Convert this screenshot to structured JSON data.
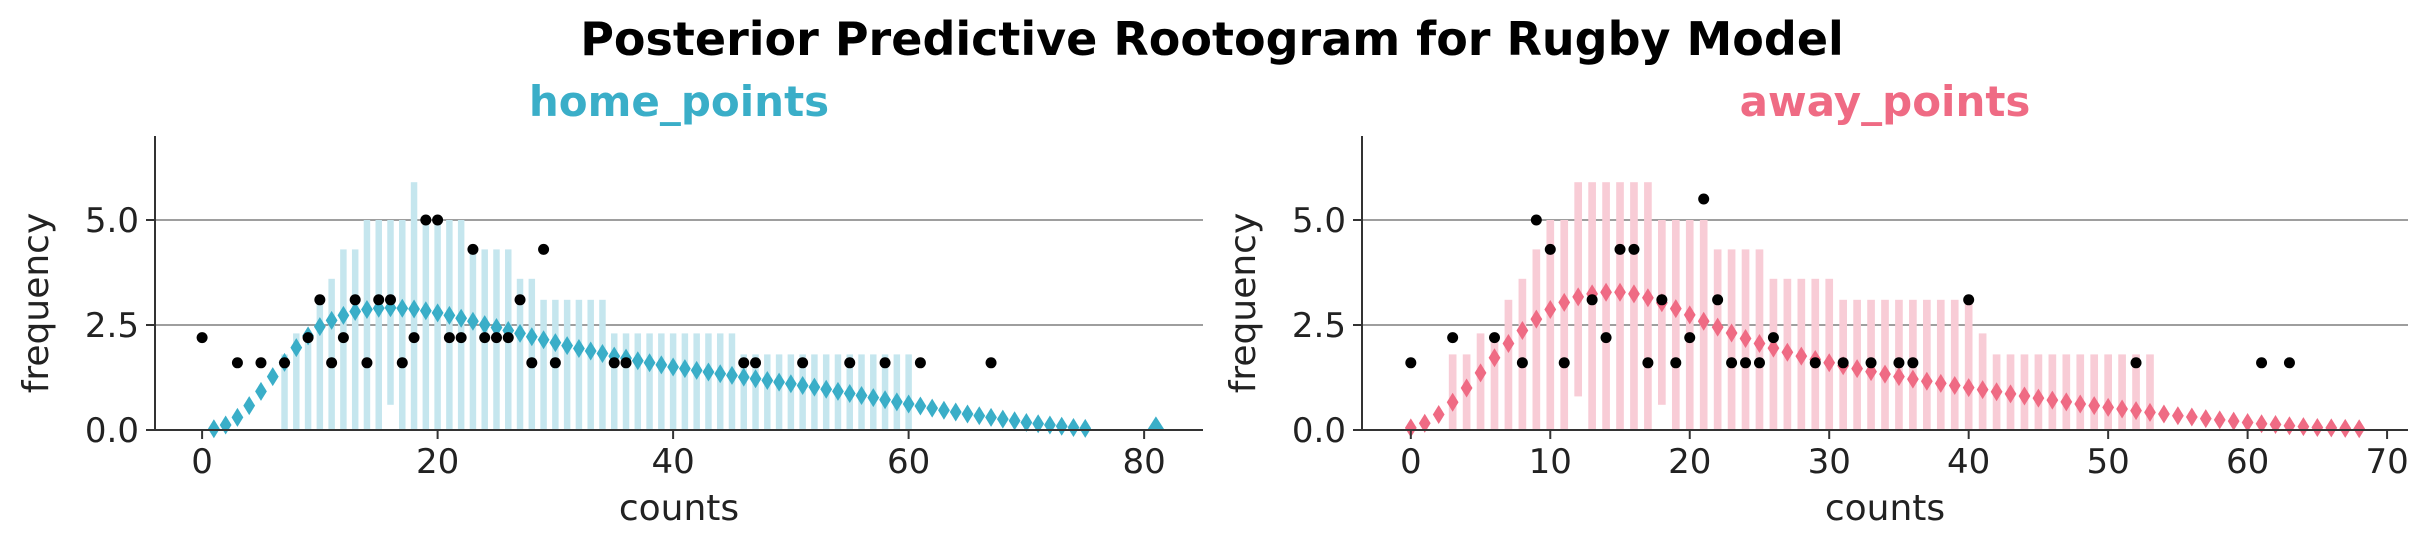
{
  "title": "Posterior Predictive Rootogram for Rugby Model",
  "colors": {
    "home": "#3aaec8",
    "home_light": "#c5e6ee",
    "away": "#ef6b84",
    "away_light": "#f8ccd6",
    "observed": "#000000",
    "gridline": "#7f7f7f"
  },
  "chart_data": [
    {
      "type": "rootogram",
      "title": "home_points",
      "xlabel": "counts",
      "ylabel": "frequency",
      "scale": "sqrt",
      "xlim": [
        -4,
        85
      ],
      "ylim": [
        0,
        7
      ],
      "xticks": [
        0,
        20,
        40,
        60,
        80
      ],
      "yticks": [
        0.0,
        2.5,
        5.0
      ],
      "gridlines_y": [
        2.5,
        5.0
      ],
      "bands": [
        {
          "x": 7,
          "lo": 0,
          "hi": 1.8
        },
        {
          "x": 8,
          "lo": 0,
          "hi": 2.3
        },
        {
          "x": 9,
          "lo": 0,
          "hi": 2.3
        },
        {
          "x": 10,
          "lo": 0,
          "hi": 3.1
        },
        {
          "x": 11,
          "lo": 0,
          "hi": 3.6
        },
        {
          "x": 12,
          "lo": 0,
          "hi": 4.3
        },
        {
          "x": 13,
          "lo": 0,
          "hi": 4.3
        },
        {
          "x": 14,
          "lo": 0,
          "hi": 5.0
        },
        {
          "x": 15,
          "lo": 0,
          "hi": 5.0
        },
        {
          "x": 16,
          "lo": 0.6,
          "hi": 5.0
        },
        {
          "x": 17,
          "lo": 0,
          "hi": 5.0
        },
        {
          "x": 18,
          "lo": 0,
          "hi": 5.9
        },
        {
          "x": 19,
          "lo": 0,
          "hi": 5.0
        },
        {
          "x": 20,
          "lo": 0,
          "hi": 5.0
        },
        {
          "x": 21,
          "lo": 0,
          "hi": 5.0
        },
        {
          "x": 22,
          "lo": 0,
          "hi": 5.0
        },
        {
          "x": 23,
          "lo": 0,
          "hi": 4.3
        },
        {
          "x": 24,
          "lo": 0,
          "hi": 4.3
        },
        {
          "x": 25,
          "lo": 0,
          "hi": 4.3
        },
        {
          "x": 26,
          "lo": 0,
          "hi": 4.3
        },
        {
          "x": 27,
          "lo": 0,
          "hi": 3.6
        },
        {
          "x": 28,
          "lo": 0,
          "hi": 3.6
        },
        {
          "x": 29,
          "lo": 0,
          "hi": 3.1
        },
        {
          "x": 30,
          "lo": 0,
          "hi": 3.1
        },
        {
          "x": 31,
          "lo": 0,
          "hi": 3.1
        },
        {
          "x": 32,
          "lo": 0,
          "hi": 3.1
        },
        {
          "x": 33,
          "lo": 0,
          "hi": 3.1
        },
        {
          "x": 34,
          "lo": 0,
          "hi": 3.1
        },
        {
          "x": 35,
          "lo": 0,
          "hi": 2.3
        },
        {
          "x": 36,
          "lo": 0,
          "hi": 2.3
        },
        {
          "x": 37,
          "lo": 0,
          "hi": 2.3
        },
        {
          "x": 38,
          "lo": 0,
          "hi": 2.3
        },
        {
          "x": 39,
          "lo": 0,
          "hi": 2.3
        },
        {
          "x": 40,
          "lo": 0,
          "hi": 2.3
        },
        {
          "x": 41,
          "lo": 0,
          "hi": 2.3
        },
        {
          "x": 42,
          "lo": 0,
          "hi": 2.3
        },
        {
          "x": 43,
          "lo": 0,
          "hi": 2.3
        },
        {
          "x": 44,
          "lo": 0,
          "hi": 2.3
        },
        {
          "x": 45,
          "lo": 0,
          "hi": 2.3
        },
        {
          "x": 46,
          "lo": 0,
          "hi": 1.8
        },
        {
          "x": 47,
          "lo": 0,
          "hi": 1.8
        },
        {
          "x": 48,
          "lo": 0,
          "hi": 1.8
        },
        {
          "x": 49,
          "lo": 0,
          "hi": 1.8
        },
        {
          "x": 50,
          "lo": 0,
          "hi": 1.8
        },
        {
          "x": 51,
          "lo": 0,
          "hi": 1.8
        },
        {
          "x": 52,
          "lo": 0,
          "hi": 1.8
        },
        {
          "x": 53,
          "lo": 0,
          "hi": 1.8
        },
        {
          "x": 54,
          "lo": 0,
          "hi": 1.8
        },
        {
          "x": 55,
          "lo": 0,
          "hi": 1.8
        },
        {
          "x": 56,
          "lo": 0,
          "hi": 1.8
        },
        {
          "x": 57,
          "lo": 0,
          "hi": 1.8
        },
        {
          "x": 58,
          "lo": 0,
          "hi": 1.8
        },
        {
          "x": 59,
          "lo": 0,
          "hi": 1.8
        },
        {
          "x": 60,
          "lo": 0,
          "hi": 1.8
        }
      ],
      "expected": {
        "x": [
          1,
          2,
          3,
          4,
          5,
          6,
          7,
          8,
          9,
          10,
          11,
          12,
          13,
          14,
          15,
          16,
          17,
          18,
          19,
          20,
          21,
          22,
          23,
          24,
          25,
          26,
          27,
          28,
          29,
          30,
          31,
          32,
          33,
          34,
          35,
          36,
          37,
          38,
          39,
          40,
          41,
          42,
          43,
          44,
          45,
          46,
          47,
          48,
          49,
          50,
          51,
          52,
          53,
          54,
          55,
          56,
          57,
          58,
          59,
          60,
          61,
          62,
          63,
          64,
          65,
          66,
          67,
          68,
          69,
          70,
          71,
          72,
          73,
          74,
          75
        ],
        "y": [
          0.03,
          0.12,
          0.3,
          0.58,
          0.92,
          1.27,
          1.61,
          1.96,
          2.24,
          2.46,
          2.61,
          2.73,
          2.82,
          2.87,
          2.9,
          2.91,
          2.9,
          2.88,
          2.84,
          2.79,
          2.73,
          2.66,
          2.59,
          2.51,
          2.44,
          2.37,
          2.3,
          2.22,
          2.15,
          2.08,
          2.01,
          1.94,
          1.88,
          1.82,
          1.76,
          1.71,
          1.65,
          1.6,
          1.55,
          1.5,
          1.46,
          1.42,
          1.38,
          1.34,
          1.3,
          1.26,
          1.22,
          1.18,
          1.14,
          1.1,
          1.06,
          1.02,
          0.97,
          0.92,
          0.87,
          0.82,
          0.77,
          0.72,
          0.67,
          0.62,
          0.57,
          0.52,
          0.47,
          0.43,
          0.38,
          0.34,
          0.3,
          0.26,
          0.22,
          0.18,
          0.15,
          0.12,
          0.09,
          0.06,
          0.04
        ]
      },
      "expected_extra": [
        {
          "x": 81,
          "y": 0.04
        }
      ],
      "observed": {
        "x": [
          0,
          3,
          5,
          7,
          9,
          10,
          11,
          12,
          13,
          14,
          15,
          16,
          17,
          18,
          19,
          20,
          21,
          22,
          23,
          24,
          25,
          26,
          27,
          28,
          29,
          30,
          35,
          36,
          46,
          47,
          51,
          55,
          58,
          61,
          67
        ],
        "y": [
          2.2,
          1.6,
          1.6,
          1.6,
          2.2,
          3.1,
          1.6,
          2.2,
          3.1,
          1.6,
          3.1,
          3.1,
          1.6,
          2.2,
          5.0,
          5.0,
          2.2,
          2.2,
          4.3,
          2.2,
          2.2,
          2.2,
          3.1,
          1.6,
          4.3,
          1.6,
          1.6,
          1.6,
          1.6,
          1.6,
          1.6,
          1.6,
          1.6,
          1.6,
          1.6
        ]
      }
    },
    {
      "type": "rootogram",
      "title": "away_points",
      "xlabel": "counts",
      "ylabel": "frequency",
      "scale": "sqrt",
      "xlim": [
        -3.5,
        71.5
      ],
      "ylim": [
        0,
        7
      ],
      "xticks": [
        0,
        10,
        20,
        30,
        40,
        50,
        60,
        70
      ],
      "yticks": [
        0.0,
        2.5,
        5.0
      ],
      "gridlines_y": [
        2.5,
        5.0
      ],
      "bands": [
        {
          "x": 3,
          "lo": 0,
          "hi": 1.8
        },
        {
          "x": 4,
          "lo": 0,
          "hi": 1.8
        },
        {
          "x": 5,
          "lo": 0,
          "hi": 2.3
        },
        {
          "x": 6,
          "lo": 0,
          "hi": 2.3
        },
        {
          "x": 7,
          "lo": 0,
          "hi": 3.1
        },
        {
          "x": 8,
          "lo": 0,
          "hi": 3.6
        },
        {
          "x": 9,
          "lo": 0,
          "hi": 4.3
        },
        {
          "x": 10,
          "lo": 0,
          "hi": 5.0
        },
        {
          "x": 11,
          "lo": 0,
          "hi": 5.0
        },
        {
          "x": 12,
          "lo": 0.8,
          "hi": 5.9
        },
        {
          "x": 13,
          "lo": 0,
          "hi": 5.9
        },
        {
          "x": 14,
          "lo": 0,
          "hi": 5.9
        },
        {
          "x": 15,
          "lo": 0,
          "hi": 5.9
        },
        {
          "x": 16,
          "lo": 0,
          "hi": 5.9
        },
        {
          "x": 17,
          "lo": 0,
          "hi": 5.9
        },
        {
          "x": 18,
          "lo": 0.6,
          "hi": 5.0
        },
        {
          "x": 19,
          "lo": 0,
          "hi": 5.0
        },
        {
          "x": 20,
          "lo": 0,
          "hi": 5.0
        },
        {
          "x": 21,
          "lo": 0,
          "hi": 5.0
        },
        {
          "x": 22,
          "lo": 0,
          "hi": 4.3
        },
        {
          "x": 23,
          "lo": 0,
          "hi": 4.3
        },
        {
          "x": 24,
          "lo": 0,
          "hi": 4.3
        },
        {
          "x": 25,
          "lo": 0,
          "hi": 4.3
        },
        {
          "x": 26,
          "lo": 0,
          "hi": 3.6
        },
        {
          "x": 27,
          "lo": 0,
          "hi": 3.6
        },
        {
          "x": 28,
          "lo": 0,
          "hi": 3.6
        },
        {
          "x": 29,
          "lo": 0,
          "hi": 3.6
        },
        {
          "x": 30,
          "lo": 0,
          "hi": 3.6
        },
        {
          "x": 31,
          "lo": 0,
          "hi": 3.1
        },
        {
          "x": 32,
          "lo": 0,
          "hi": 3.1
        },
        {
          "x": 33,
          "lo": 0,
          "hi": 3.1
        },
        {
          "x": 34,
          "lo": 0,
          "hi": 3.1
        },
        {
          "x": 35,
          "lo": 0,
          "hi": 3.1
        },
        {
          "x": 36,
          "lo": 0,
          "hi": 3.1
        },
        {
          "x": 37,
          "lo": 0,
          "hi": 3.1
        },
        {
          "x": 38,
          "lo": 0,
          "hi": 3.1
        },
        {
          "x": 39,
          "lo": 0,
          "hi": 3.1
        },
        {
          "x": 40,
          "lo": 0,
          "hi": 3.1
        },
        {
          "x": 41,
          "lo": 0,
          "hi": 2.3
        },
        {
          "x": 42,
          "lo": 0,
          "hi": 1.8
        },
        {
          "x": 43,
          "lo": 0,
          "hi": 1.8
        },
        {
          "x": 44,
          "lo": 0,
          "hi": 1.8
        },
        {
          "x": 45,
          "lo": 0,
          "hi": 1.8
        },
        {
          "x": 46,
          "lo": 0,
          "hi": 1.8
        },
        {
          "x": 47,
          "lo": 0,
          "hi": 1.8
        },
        {
          "x": 48,
          "lo": 0,
          "hi": 1.8
        },
        {
          "x": 49,
          "lo": 0,
          "hi": 1.8
        },
        {
          "x": 50,
          "lo": 0,
          "hi": 1.8
        },
        {
          "x": 51,
          "lo": 0,
          "hi": 1.8
        },
        {
          "x": 52,
          "lo": 0,
          "hi": 1.8
        },
        {
          "x": 53,
          "lo": 0,
          "hi": 1.8
        }
      ],
      "expected": {
        "x": [
          0,
          1,
          2,
          3,
          4,
          5,
          6,
          7,
          8,
          9,
          10,
          11,
          12,
          13,
          14,
          15,
          16,
          17,
          18,
          19,
          20,
          21,
          22,
          23,
          24,
          25,
          26,
          27,
          28,
          29,
          30,
          31,
          32,
          33,
          34,
          35,
          36,
          37,
          38,
          39,
          40,
          41,
          42,
          43,
          44,
          45,
          46,
          47,
          48,
          49,
          50,
          51,
          52,
          53,
          54,
          55,
          56,
          57,
          58,
          59,
          60,
          61,
          62,
          63,
          64,
          65,
          66,
          67,
          68
        ],
        "y": [
          0.05,
          0.16,
          0.37,
          0.66,
          1.0,
          1.36,
          1.72,
          2.06,
          2.37,
          2.64,
          2.87,
          3.04,
          3.17,
          3.24,
          3.28,
          3.28,
          3.24,
          3.15,
          3.03,
          2.89,
          2.74,
          2.59,
          2.45,
          2.31,
          2.18,
          2.06,
          1.95,
          1.85,
          1.76,
          1.68,
          1.6,
          1.53,
          1.46,
          1.39,
          1.33,
          1.27,
          1.21,
          1.16,
          1.11,
          1.06,
          1.01,
          0.96,
          0.91,
          0.86,
          0.81,
          0.76,
          0.71,
          0.67,
          0.62,
          0.58,
          0.54,
          0.5,
          0.46,
          0.42,
          0.38,
          0.34,
          0.31,
          0.27,
          0.24,
          0.21,
          0.18,
          0.15,
          0.13,
          0.1,
          0.08,
          0.06,
          0.05,
          0.04,
          0.03
        ]
      },
      "expected_extra": [],
      "observed": {
        "x": [
          0,
          3,
          6,
          8,
          9,
          10,
          11,
          13,
          14,
          15,
          16,
          17,
          18,
          19,
          20,
          21,
          22,
          23,
          24,
          25,
          26,
          29,
          31,
          33,
          35,
          36,
          40,
          52,
          61,
          63
        ],
        "y": [
          1.6,
          2.2,
          2.2,
          1.6,
          5.0,
          4.3,
          1.6,
          3.1,
          2.2,
          4.3,
          4.3,
          1.6,
          3.1,
          1.6,
          2.2,
          5.5,
          3.1,
          1.6,
          1.6,
          1.6,
          2.2,
          1.6,
          1.6,
          1.6,
          1.6,
          1.6,
          3.1,
          1.6,
          1.6,
          1.6
        ]
      }
    }
  ]
}
